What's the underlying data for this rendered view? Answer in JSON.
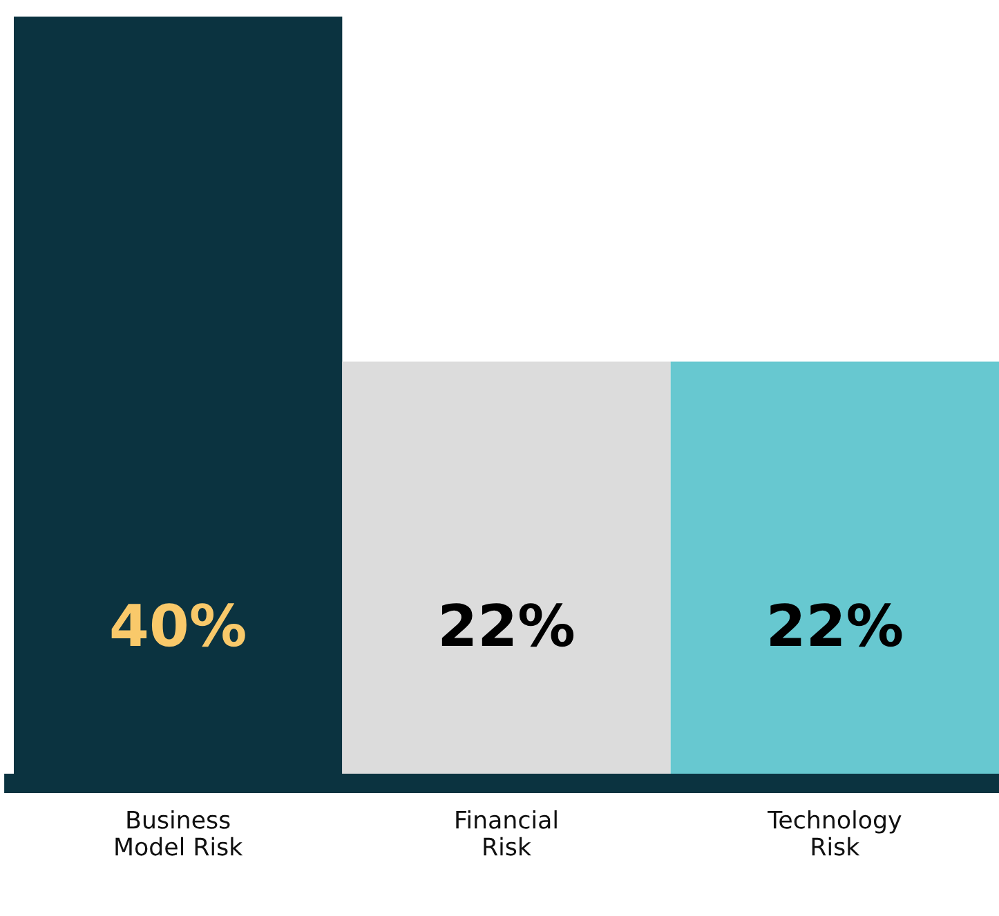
{
  "chart_data": {
    "type": "bar",
    "categories": [
      "Business\nModel Risk",
      "Financial\nRisk",
      "Technology\nRisk"
    ],
    "values": [
      40,
      22,
      22
    ],
    "value_labels": [
      "40%",
      "22%",
      "22%"
    ],
    "colors": [
      "#0b3340",
      "#dcdcdc",
      "#67c8d0"
    ],
    "grid": false,
    "legend": false
  }
}
